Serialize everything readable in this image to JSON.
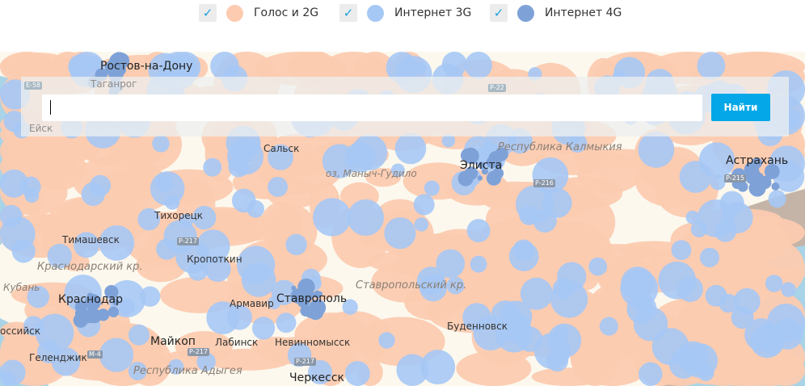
{
  "legend": {
    "items": [
      {
        "label": "Голос и 2G",
        "color": "#fccbb0",
        "checked": true
      },
      {
        "label": "Интернет 3G",
        "color": "#a6c8f5",
        "checked": true
      },
      {
        "label": "Интернет 4G",
        "color": "#7ea2d8",
        "checked": true
      }
    ],
    "check_color": "#1aa3e0"
  },
  "search": {
    "value": "",
    "button_label": "Найти",
    "button_color": "#04a8e8"
  },
  "map": {
    "land_color": "#fcf8ee",
    "sea_color": "#a9d3e6",
    "cities": {
      "rostov": "Ростов-на-Дону",
      "taganrog": "Таганрог",
      "salsk": "Сальск",
      "elista": "Элиста",
      "astrakhan": "Астрахань",
      "tikhoretsk": "Тихорецк",
      "timashevsk": "Тимашевск",
      "kropotkin": "Кропоткин",
      "krasnodar": "Краснодар",
      "armavir": "Армавир",
      "stavropol": "Ставрополь",
      "budennovsk": "Буденновск",
      "maykop": "Майкоп",
      "labinsk": "Лабинск",
      "nevinnomyssk": "Невинномысск",
      "gelendzhik": "Геленджик",
      "cherkessk": "Черкесск",
      "novorossiysk": "оссийск",
      "eysk": "Ейск"
    },
    "regions": {
      "kalmykia": "Республика Калмыкия",
      "krasnodar_kr": "Краснодарский кр.",
      "stavropol_kr": "Ставропольский кр.",
      "adygea": "Республика Адыгея"
    },
    "water": {
      "manych": "оз. Маныч-Гудило",
      "kuban": "Кубань"
    },
    "roads": {
      "e58": "E-58",
      "p22": "Р-22",
      "m4": "М-4",
      "p217a": "Р-217",
      "p217b": "Р-217",
      "p216": "Р-216",
      "p215": "Р-215",
      "p217c": "Р-217"
    }
  }
}
